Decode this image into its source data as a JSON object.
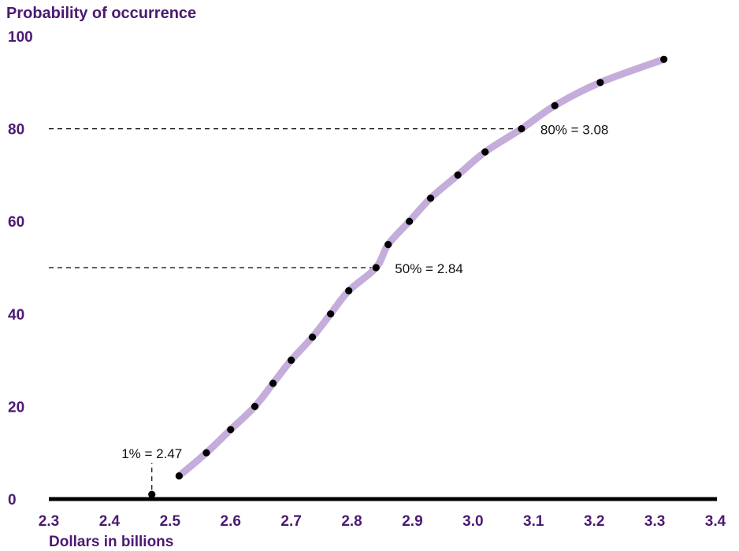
{
  "chart_data": {
    "type": "line",
    "ylabel": "Probability of occurrence",
    "xlabel": "Dollars in billions",
    "xlim": [
      2.3,
      3.4
    ],
    "ylim": [
      0,
      100
    ],
    "x_ticks": [
      "2.3",
      "2.4",
      "2.5",
      "2.6",
      "2.7",
      "2.8",
      "2.9",
      "3.0",
      "3.1",
      "3.2",
      "3.3",
      "3.4"
    ],
    "y_ticks": [
      "0",
      "20",
      "40",
      "60",
      "80",
      "100"
    ],
    "grid": false,
    "series": [
      {
        "x": [
          2.47,
          2.515,
          2.56,
          2.6,
          2.64,
          2.67,
          2.7,
          2.735,
          2.765,
          2.795,
          2.84,
          2.86,
          2.895,
          2.93,
          2.975,
          3.02,
          3.08,
          3.135,
          3.21,
          3.315
        ],
        "y": [
          1,
          5,
          10,
          15,
          20,
          25,
          30,
          35,
          40,
          45,
          50,
          55,
          60,
          65,
          70,
          75,
          80,
          85,
          90,
          95
        ]
      }
    ],
    "annotations": [
      {
        "text": "1% = 2.47",
        "x": 2.47,
        "y": 1
      },
      {
        "text": "50% = 2.84",
        "x": 2.84,
        "y": 50
      },
      {
        "text": "80% = 3.08",
        "x": 3.08,
        "y": 80
      }
    ],
    "colors": {
      "curve": "#C4ADDA",
      "point": "#000000",
      "axis_text": "#4B1A72"
    }
  }
}
